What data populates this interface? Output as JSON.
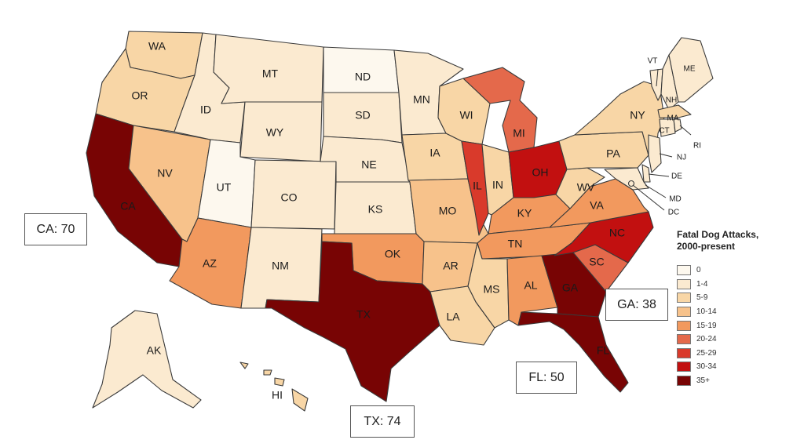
{
  "legend": {
    "title_line1": "Fatal Dog Attacks,",
    "title_line2": "2000-present",
    "items": [
      {
        "label": "0",
        "color": "#fdf8ee"
      },
      {
        "label": "1-4",
        "color": "#fbead0"
      },
      {
        "label": "5-9",
        "color": "#f8d6a6"
      },
      {
        "label": "10-14",
        "color": "#f7c28b"
      },
      {
        "label": "15-19",
        "color": "#f2995e"
      },
      {
        "label": "20-24",
        "color": "#e4694b"
      },
      {
        "label": "25-29",
        "color": "#d93a2b"
      },
      {
        "label": "30-34",
        "color": "#c21010"
      },
      {
        "label": "35+",
        "color": "#780404"
      }
    ]
  },
  "callouts": {
    "ca": "CA: 70",
    "tx": "TX: 74",
    "fl": "FL: 50",
    "ga": "GA: 38"
  },
  "states": {
    "WA": {
      "label": "WA",
      "color": "#f8d6a6"
    },
    "OR": {
      "label": "OR",
      "color": "#f8d6a6"
    },
    "CA": {
      "label": "CA",
      "color": "#780404"
    },
    "NV": {
      "label": "NV",
      "color": "#f7c28b"
    },
    "ID": {
      "label": "ID",
      "color": "#fbead0"
    },
    "MT": {
      "label": "MT",
      "color": "#fbead0"
    },
    "WY": {
      "label": "WY",
      "color": "#fbead0"
    },
    "UT": {
      "label": "UT",
      "color": "#fdf8ee"
    },
    "CO": {
      "label": "CO",
      "color": "#fbead0"
    },
    "AZ": {
      "label": "AZ",
      "color": "#f2995e"
    },
    "NM": {
      "label": "NM",
      "color": "#fbead0"
    },
    "ND": {
      "label": "ND",
      "color": "#fdf8ee"
    },
    "SD": {
      "label": "SD",
      "color": "#fbead0"
    },
    "NE": {
      "label": "NE",
      "color": "#fbead0"
    },
    "KS": {
      "label": "KS",
      "color": "#fbead0"
    },
    "OK": {
      "label": "OK",
      "color": "#f2995e"
    },
    "TX": {
      "label": "TX",
      "color": "#780404"
    },
    "MN": {
      "label": "MN",
      "color": "#fbead0"
    },
    "IA": {
      "label": "IA",
      "color": "#f8d6a6"
    },
    "MO": {
      "label": "MO",
      "color": "#f7c28b"
    },
    "AR": {
      "label": "AR",
      "color": "#f7c28b"
    },
    "LA": {
      "label": "LA",
      "color": "#f8d6a6"
    },
    "WI": {
      "label": "WI",
      "color": "#f8d6a6"
    },
    "IL": {
      "label": "IL",
      "color": "#d93a2b"
    },
    "MI": {
      "label": "MI",
      "color": "#e4694b"
    },
    "IN": {
      "label": "IN",
      "color": "#f8d6a6"
    },
    "OH": {
      "label": "OH",
      "color": "#c21010"
    },
    "KY": {
      "label": "KY",
      "color": "#f2995e"
    },
    "TN": {
      "label": "TN",
      "color": "#f2995e"
    },
    "MS": {
      "label": "MS",
      "color": "#f8d6a6"
    },
    "AL": {
      "label": "AL",
      "color": "#f2995e"
    },
    "GA": {
      "label": "GA",
      "color": "#780404"
    },
    "FL": {
      "label": "FL",
      "color": "#780404"
    },
    "SC": {
      "label": "SC",
      "color": "#e4694b"
    },
    "NC": {
      "label": "NC",
      "color": "#c21010"
    },
    "VA": {
      "label": "VA",
      "color": "#f2995e"
    },
    "WV": {
      "label": "WV",
      "color": "#f8d6a6"
    },
    "PA": {
      "label": "PA",
      "color": "#f8d6a6"
    },
    "NY": {
      "label": "NY",
      "color": "#f8d6a6"
    },
    "VT": {
      "label": "VT",
      "color": "#fbead0"
    },
    "NH": {
      "label": "NH",
      "color": "#fbead0"
    },
    "ME": {
      "label": "ME",
      "color": "#fbead0"
    },
    "MA": {
      "label": "MA",
      "color": "#f8d6a6"
    },
    "CT": {
      "label": "CT",
      "color": "#fbead0"
    },
    "RI": {
      "label": "RI",
      "color": "#fbead0"
    },
    "NJ": {
      "label": "NJ",
      "color": "#fbead0"
    },
    "DE": {
      "label": "DE",
      "color": "#fbead0"
    },
    "MD": {
      "label": "MD",
      "color": "#fbead0"
    },
    "DC": {
      "label": "DC",
      "color": "#fbead0"
    },
    "AK": {
      "label": "AK",
      "color": "#fbead0"
    },
    "HI": {
      "label": "HI",
      "color": "#f8d6a6"
    }
  }
}
